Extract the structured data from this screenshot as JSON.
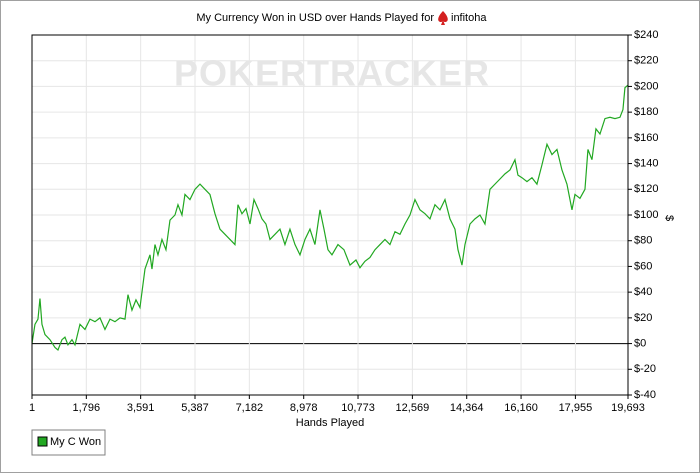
{
  "chart_data": {
    "type": "line",
    "title": "My Currency Won in USD over Hands Played for",
    "player": "infitoha",
    "watermark": "POKERTRACKER",
    "x_label": "Hands Played",
    "y_label": "$",
    "grid": true,
    "legend": "bottom-left",
    "xlim": [
      1,
      19693
    ],
    "ylim": [
      -40,
      240
    ],
    "xticks": [
      1,
      {
        "value": 1796,
        "label": "1,796"
      },
      {
        "value": 3591,
        "label": "3,591"
      },
      {
        "value": 5387,
        "label": "5,387"
      },
      {
        "value": 7182,
        "label": "7,182"
      },
      {
        "value": 8978,
        "label": "8,978"
      },
      {
        "value": 10773,
        "label": "10,773"
      },
      {
        "value": 12569,
        "label": "12,569"
      },
      {
        "value": 14364,
        "label": "14,364"
      },
      {
        "value": 16160,
        "label": "16,160"
      },
      {
        "value": 17955,
        "label": "17,955"
      },
      {
        "value": 19693,
        "label": "19,693"
      }
    ],
    "yticks": [
      {
        "value": -40,
        "label": "$-40"
      },
      {
        "value": -20,
        "label": "$-20"
      },
      {
        "value": 0,
        "label": "$0"
      },
      {
        "value": 20,
        "label": "$20"
      },
      {
        "value": 40,
        "label": "$40"
      },
      {
        "value": 60,
        "label": "$60"
      },
      {
        "value": 80,
        "label": "$80"
      },
      {
        "value": 100,
        "label": "$100"
      },
      {
        "value": 120,
        "label": "$120"
      },
      {
        "value": 140,
        "label": "$140"
      },
      {
        "value": 160,
        "label": "$160"
      },
      {
        "value": 180,
        "label": "$180"
      },
      {
        "value": 200,
        "label": "$200"
      },
      {
        "value": 220,
        "label": "$220"
      },
      {
        "value": 240,
        "label": "$240"
      }
    ],
    "x": [
      1,
      99,
      198,
      264,
      330,
      430,
      595,
      760,
      859,
      991,
      1090,
      1189,
      1322,
      1421,
      1586,
      1751,
      1916,
      2082,
      2247,
      2412,
      2577,
      2742,
      2908,
      3073,
      3172,
      3304,
      3436,
      3568,
      3734,
      3899,
      3965,
      4064,
      4163,
      4295,
      4427,
      4560,
      4725,
      4824,
      4956,
      5055,
      5220,
      5386,
      5551,
      5716,
      5881,
      6046,
      6212,
      6377,
      6542,
      6707,
      6806,
      6938,
      7071,
      7203,
      7335,
      7467,
      7599,
      7731,
      7864,
      8029,
      8194,
      8359,
      8524,
      8690,
      8855,
      9020,
      9185,
      9350,
      9516,
      9648,
      9780,
      9912,
      10110,
      10308,
      10507,
      10705,
      10837,
      11002,
      11168,
      11333,
      11498,
      11663,
      11828,
      11994,
      12159,
      12324,
      12489,
      12654,
      12820,
      12985,
      13150,
      13315,
      13480,
      13646,
      13811,
      13976,
      14075,
      14207,
      14306,
      14472,
      14637,
      14802,
      14967,
      15132,
      15298,
      15463,
      15628,
      15793,
      15958,
      16057,
      16190,
      16355,
      16520,
      16685,
      16850,
      17016,
      17181,
      17346,
      17511,
      17676,
      17842,
      17941,
      18106,
      18271,
      18370,
      18502,
      18634,
      18767,
      18932,
      19097,
      19262,
      19427,
      19526,
      19592,
      19693
    ],
    "series": [
      {
        "name": "My C Won",
        "color": "#22a822",
        "values": [
          0,
          15,
          19,
          35,
          15,
          7,
          3,
          -3,
          -5,
          3,
          5,
          -1,
          3,
          -1,
          15,
          11,
          19,
          17,
          20,
          11,
          19,
          17,
          20,
          19,
          38,
          26,
          34,
          28,
          58,
          69,
          58,
          77,
          69,
          81,
          73,
          96,
          100,
          108,
          100,
          116,
          112,
          120,
          124,
          120,
          116,
          101,
          89,
          85,
          81,
          77,
          108,
          101,
          105,
          93,
          112,
          105,
          97,
          93,
          81,
          85,
          89,
          77,
          89,
          77,
          69,
          81,
          89,
          77,
          104,
          89,
          73,
          69,
          77,
          73,
          61,
          65,
          59,
          64,
          67,
          73,
          77,
          81,
          77,
          87,
          85,
          93,
          100,
          112,
          104,
          101,
          97,
          108,
          104,
          112,
          97,
          89,
          73,
          61,
          77,
          93,
          97,
          100,
          93,
          120,
          124,
          128,
          132,
          135,
          143,
          131,
          129,
          126,
          129,
          124,
          139,
          155,
          147,
          151,
          135,
          124,
          104,
          116,
          113,
          120,
          151,
          143,
          167,
          163,
          175,
          176,
          175,
          176,
          182,
          199,
          201
        ]
      }
    ]
  }
}
